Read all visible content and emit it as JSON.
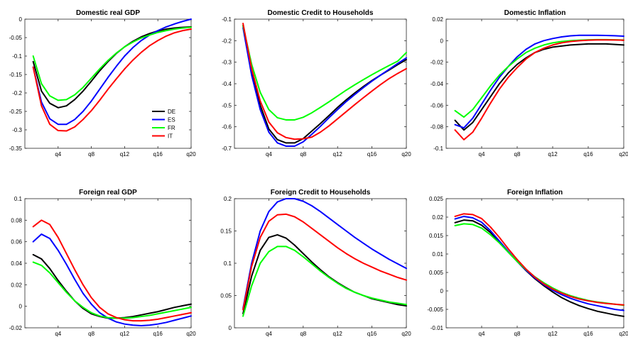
{
  "chart_data": [
    {
      "type": "line",
      "title": "Domestic real GDP",
      "x": [
        1,
        2,
        3,
        4,
        5,
        6,
        7,
        8,
        9,
        10,
        11,
        12,
        13,
        14,
        15,
        16,
        17,
        18,
        19,
        20
      ],
      "xticks": [
        4,
        8,
        12,
        16,
        20
      ],
      "xticklabels": [
        "q4",
        "q8",
        "q12",
        "q16",
        "q20"
      ],
      "xlim": [
        0,
        20
      ],
      "ylim": [
        -0.35,
        0
      ],
      "yticks": [
        -0.35,
        -0.3,
        -0.25,
        -0.2,
        -0.15,
        -0.1,
        -0.05,
        0
      ],
      "yticklabels": [
        "-0.35",
        "-0.3",
        "-0.25",
        "-0.2",
        "-0.15",
        "-0.1",
        "-0.05",
        "0"
      ],
      "legend": "inside-lower-right",
      "series": [
        {
          "name": "DE",
          "color": "#000000",
          "values": [
            -0.115,
            -0.195,
            -0.228,
            -0.24,
            -0.235,
            -0.218,
            -0.195,
            -0.168,
            -0.14,
            -0.115,
            -0.093,
            -0.075,
            -0.06,
            -0.048,
            -0.039,
            -0.032,
            -0.027,
            -0.024,
            -0.022,
            -0.021
          ]
        },
        {
          "name": "ES",
          "color": "#0000ff",
          "values": [
            -0.13,
            -0.225,
            -0.27,
            -0.285,
            -0.285,
            -0.272,
            -0.25,
            -0.222,
            -0.19,
            -0.158,
            -0.128,
            -0.1,
            -0.077,
            -0.058,
            -0.043,
            -0.031,
            -0.021,
            -0.013,
            -0.006,
            0.0
          ]
        },
        {
          "name": "FR",
          "color": "#00ff00",
          "values": [
            -0.1,
            -0.175,
            -0.208,
            -0.22,
            -0.218,
            -0.205,
            -0.185,
            -0.16,
            -0.135,
            -0.112,
            -0.092,
            -0.075,
            -0.062,
            -0.051,
            -0.043,
            -0.036,
            -0.031,
            -0.027,
            -0.024,
            -0.022
          ]
        },
        {
          "name": "IT",
          "color": "#ff0000",
          "values": [
            -0.13,
            -0.235,
            -0.285,
            -0.302,
            -0.303,
            -0.292,
            -0.272,
            -0.248,
            -0.22,
            -0.19,
            -0.162,
            -0.135,
            -0.111,
            -0.09,
            -0.072,
            -0.058,
            -0.046,
            -0.037,
            -0.031,
            -0.027
          ]
        }
      ]
    },
    {
      "type": "line",
      "title": "Domestic Credit to Households",
      "x": [
        1,
        2,
        3,
        4,
        5,
        6,
        7,
        8,
        9,
        10,
        11,
        12,
        13,
        14,
        15,
        16,
        17,
        18,
        19,
        20
      ],
      "xticks": [
        4,
        8,
        12,
        16,
        20
      ],
      "xticklabels": [
        "q4",
        "q8",
        "q12",
        "q16",
        "q20"
      ],
      "xlim": [
        0,
        20
      ],
      "ylim": [
        -0.7,
        -0.1
      ],
      "yticks": [
        -0.7,
        -0.6,
        -0.5,
        -0.4,
        -0.3,
        -0.2,
        -0.1
      ],
      "yticklabels": [
        "-0.7",
        "-0.6",
        "-0.5",
        "-0.4",
        "-0.3",
        "-0.2",
        "-0.1"
      ],
      "series": [
        {
          "name": "DE",
          "color": "#000000",
          "values": [
            -0.13,
            -0.34,
            -0.5,
            -0.61,
            -0.66,
            -0.675,
            -0.675,
            -0.655,
            -0.62,
            -0.585,
            -0.548,
            -0.51,
            -0.475,
            -0.443,
            -0.413,
            -0.385,
            -0.36,
            -0.336,
            -0.311,
            -0.288
          ]
        },
        {
          "name": "ES",
          "color": "#0000ff",
          "values": [
            -0.14,
            -0.36,
            -0.52,
            -0.625,
            -0.675,
            -0.69,
            -0.69,
            -0.67,
            -0.635,
            -0.598,
            -0.558,
            -0.52,
            -0.483,
            -0.45,
            -0.418,
            -0.388,
            -0.36,
            -0.333,
            -0.306,
            -0.28
          ]
        },
        {
          "name": "FR",
          "color": "#00ff00",
          "values": [
            -0.13,
            -0.31,
            -0.44,
            -0.52,
            -0.558,
            -0.568,
            -0.568,
            -0.556,
            -0.535,
            -0.51,
            -0.484,
            -0.457,
            -0.43,
            -0.405,
            -0.381,
            -0.358,
            -0.336,
            -0.315,
            -0.295,
            -0.255
          ]
        },
        {
          "name": "IT",
          "color": "#ff0000",
          "values": [
            -0.12,
            -0.33,
            -0.48,
            -0.578,
            -0.628,
            -0.65,
            -0.658,
            -0.656,
            -0.648,
            -0.625,
            -0.596,
            -0.563,
            -0.53,
            -0.497,
            -0.465,
            -0.434,
            -0.404,
            -0.376,
            -0.352,
            -0.33
          ]
        }
      ]
    },
    {
      "type": "line",
      "title": "Domestic Inflation",
      "x": [
        1,
        2,
        3,
        4,
        5,
        6,
        7,
        8,
        9,
        10,
        11,
        12,
        13,
        14,
        15,
        16,
        17,
        18,
        19,
        20
      ],
      "xticks": [
        4,
        8,
        12,
        16,
        20
      ],
      "xticklabels": [
        "q4",
        "q8",
        "q12",
        "q16",
        "q20"
      ],
      "xlim": [
        0,
        20
      ],
      "ylim": [
        -0.1,
        0.02
      ],
      "yticks": [
        -0.1,
        -0.08,
        -0.06,
        -0.04,
        -0.02,
        0,
        0.02
      ],
      "yticklabels": [
        "-0.1",
        "-0.08",
        "-0.06",
        "-0.04",
        "-0.02",
        "0",
        "0.02"
      ],
      "series": [
        {
          "name": "DE",
          "color": "#000000",
          "values": [
            -0.074,
            -0.083,
            -0.076,
            -0.064,
            -0.052,
            -0.04,
            -0.03,
            -0.022,
            -0.016,
            -0.011,
            -0.008,
            -0.006,
            -0.005,
            -0.004,
            -0.0035,
            -0.003,
            -0.003,
            -0.003,
            -0.0035,
            -0.004
          ]
        },
        {
          "name": "ES",
          "color": "#0000ff",
          "values": [
            -0.078,
            -0.081,
            -0.072,
            -0.059,
            -0.046,
            -0.034,
            -0.024,
            -0.015,
            -0.008,
            -0.003,
            0.0,
            0.002,
            0.0035,
            0.0045,
            0.005,
            0.005,
            0.005,
            0.0048,
            0.0046,
            0.0042
          ]
        },
        {
          "name": "FR",
          "color": "#00ff00",
          "values": [
            -0.065,
            -0.071,
            -0.064,
            -0.053,
            -0.042,
            -0.032,
            -0.024,
            -0.017,
            -0.011,
            -0.007,
            -0.004,
            -0.002,
            -0.0008,
            0.0,
            0.0005,
            0.0008,
            0.001,
            0.001,
            0.0008,
            0.0006
          ]
        },
        {
          "name": "IT",
          "color": "#ff0000",
          "values": [
            -0.083,
            -0.092,
            -0.085,
            -0.072,
            -0.058,
            -0.045,
            -0.034,
            -0.025,
            -0.017,
            -0.011,
            -0.007,
            -0.004,
            -0.002,
            -0.0008,
            0.0,
            0.0005,
            0.0007,
            0.0007,
            0.0006,
            0.0005
          ]
        }
      ]
    },
    {
      "type": "line",
      "title": "Foreign real GDP",
      "x": [
        1,
        2,
        3,
        4,
        5,
        6,
        7,
        8,
        9,
        10,
        11,
        12,
        13,
        14,
        15,
        16,
        17,
        18,
        19,
        20
      ],
      "xticks": [
        4,
        8,
        12,
        16,
        20
      ],
      "xticklabels": [
        "q4",
        "q8",
        "q12",
        "q16",
        "q20"
      ],
      "xlim": [
        0,
        20
      ],
      "ylim": [
        -0.02,
        0.1
      ],
      "yticks": [
        -0.02,
        0,
        0.02,
        0.04,
        0.06,
        0.08,
        0.1
      ],
      "yticklabels": [
        "-0.02",
        "0",
        "0.02",
        "0.04",
        "0.06",
        "0.08",
        "0.1"
      ],
      "series": [
        {
          "name": "DE",
          "color": "#000000",
          "values": [
            0.048,
            0.044,
            0.035,
            0.024,
            0.014,
            0.005,
            -0.002,
            -0.007,
            -0.0095,
            -0.011,
            -0.011,
            -0.0105,
            -0.0095,
            -0.008,
            -0.0065,
            -0.005,
            -0.003,
            -0.001,
            0.0005,
            0.002
          ]
        },
        {
          "name": "ES",
          "color": "#0000ff",
          "values": [
            0.06,
            0.067,
            0.063,
            0.052,
            0.039,
            0.025,
            0.012,
            0.002,
            -0.006,
            -0.011,
            -0.0145,
            -0.0165,
            -0.0175,
            -0.018,
            -0.0175,
            -0.0165,
            -0.015,
            -0.013,
            -0.011,
            -0.009
          ]
        },
        {
          "name": "FR",
          "color": "#00ff00",
          "values": [
            0.041,
            0.038,
            0.031,
            0.022,
            0.013,
            0.005,
            -0.001,
            -0.006,
            -0.009,
            -0.0105,
            -0.011,
            -0.011,
            -0.0105,
            -0.0095,
            -0.0085,
            -0.007,
            -0.0055,
            -0.004,
            -0.0025,
            -0.001
          ]
        },
        {
          "name": "IT",
          "color": "#ff0000",
          "values": [
            0.074,
            0.08,
            0.076,
            0.064,
            0.049,
            0.034,
            0.02,
            0.008,
            -0.001,
            -0.007,
            -0.0105,
            -0.0125,
            -0.0135,
            -0.0135,
            -0.013,
            -0.012,
            -0.0105,
            -0.009,
            -0.0075,
            -0.006
          ]
        }
      ]
    },
    {
      "type": "line",
      "title": "Foreign Credit to Households",
      "x": [
        1,
        2,
        3,
        4,
        5,
        6,
        7,
        8,
        9,
        10,
        11,
        12,
        13,
        14,
        15,
        16,
        17,
        18,
        19,
        20
      ],
      "xticks": [
        4,
        8,
        12,
        16,
        20
      ],
      "xticklabels": [
        "q4",
        "q8",
        "q12",
        "q16",
        "q20"
      ],
      "xlim": [
        0,
        20
      ],
      "ylim": [
        0,
        0.2
      ],
      "yticks": [
        0,
        0.05,
        0.1,
        0.15,
        0.2
      ],
      "yticklabels": [
        "0",
        "0.05",
        "0.1",
        "0.15",
        "0.2"
      ],
      "series": [
        {
          "name": "DE",
          "color": "#000000",
          "values": [
            0.022,
            0.08,
            0.12,
            0.14,
            0.144,
            0.139,
            0.128,
            0.115,
            0.102,
            0.09,
            0.079,
            0.07,
            0.062,
            0.055,
            0.05,
            0.045,
            0.042,
            0.039,
            0.036,
            0.034
          ]
        },
        {
          "name": "ES",
          "color": "#0000ff",
          "values": [
            0.03,
            0.1,
            0.15,
            0.18,
            0.195,
            0.2,
            0.2,
            0.196,
            0.189,
            0.18,
            0.17,
            0.16,
            0.15,
            0.14,
            0.131,
            0.122,
            0.114,
            0.106,
            0.099,
            0.092
          ]
        },
        {
          "name": "FR",
          "color": "#00ff00",
          "values": [
            0.018,
            0.065,
            0.1,
            0.118,
            0.126,
            0.126,
            0.12,
            0.11,
            0.099,
            0.088,
            0.078,
            0.069,
            0.061,
            0.055,
            0.05,
            0.046,
            0.043,
            0.04,
            0.038,
            0.036
          ]
        },
        {
          "name": "IT",
          "color": "#ff0000",
          "values": [
            0.028,
            0.095,
            0.14,
            0.165,
            0.175,
            0.176,
            0.172,
            0.164,
            0.154,
            0.144,
            0.134,
            0.124,
            0.115,
            0.107,
            0.1,
            0.094,
            0.088,
            0.083,
            0.078,
            0.074
          ]
        }
      ]
    },
    {
      "type": "line",
      "title": "Foreign Inflation",
      "x": [
        1,
        2,
        3,
        4,
        5,
        6,
        7,
        8,
        9,
        10,
        11,
        12,
        13,
        14,
        15,
        16,
        17,
        18,
        19,
        20
      ],
      "xticks": [
        4,
        8,
        12,
        16,
        20
      ],
      "xticklabels": [
        "q4",
        "q8",
        "q12",
        "q16",
        "q20"
      ],
      "xlim": [
        0,
        20
      ],
      "ylim": [
        -0.01,
        0.025
      ],
      "yticks": [
        -0.01,
        -0.005,
        0,
        0.005,
        0.01,
        0.015,
        0.02,
        0.025
      ],
      "yticklabels": [
        "-0.01",
        "-0.005",
        "0",
        "0.005",
        "0.01",
        "0.015",
        "0.02",
        "0.025"
      ],
      "series": [
        {
          "name": "DE",
          "color": "#000000",
          "values": [
            0.0185,
            0.0192,
            0.019,
            0.0178,
            0.0158,
            0.0132,
            0.0105,
            0.008,
            0.0055,
            0.0033,
            0.0014,
            -0.0003,
            -0.0018,
            -0.003,
            -0.004,
            -0.0048,
            -0.0055,
            -0.006,
            -0.0065,
            -0.0069
          ]
        },
        {
          "name": "ES",
          "color": "#0000ff",
          "values": [
            0.0195,
            0.0202,
            0.0198,
            0.0186,
            0.0163,
            0.0135,
            0.0107,
            0.008,
            0.0056,
            0.0035,
            0.0017,
            0.0002,
            -0.001,
            -0.002,
            -0.0028,
            -0.0035,
            -0.004,
            -0.0045,
            -0.005,
            -0.0053
          ]
        },
        {
          "name": "FR",
          "color": "#00ff00",
          "values": [
            0.0177,
            0.0182,
            0.018,
            0.017,
            0.0152,
            0.013,
            0.0105,
            0.008,
            0.0058,
            0.0038,
            0.0022,
            0.0008,
            -0.0004,
            -0.0013,
            -0.002,
            -0.0026,
            -0.003,
            -0.0033,
            -0.0036,
            -0.0039
          ]
        },
        {
          "name": "IT",
          "color": "#ff0000",
          "values": [
            0.0202,
            0.0209,
            0.0207,
            0.0196,
            0.0173,
            0.0145,
            0.0114,
            0.0085,
            0.0059,
            0.0037,
            0.0019,
            0.0005,
            -0.0006,
            -0.0015,
            -0.0022,
            -0.0027,
            -0.0031,
            -0.0034,
            -0.0036,
            -0.0038
          ]
        }
      ]
    }
  ]
}
